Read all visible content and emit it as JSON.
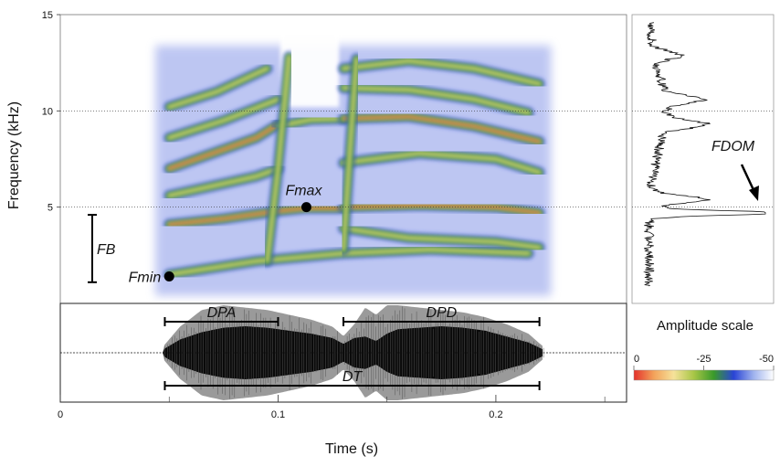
{
  "chart_data": [
    {
      "type": "heatmap",
      "panel": "spectrogram",
      "xlim": [
        0,
        0.26
      ],
      "ylim": [
        0,
        15
      ],
      "ylabel": "Frequency (kHz)",
      "yticks": [
        "5",
        "10",
        "15"
      ],
      "gridlines_y": [
        5,
        10
      ],
      "call_start_s": 0.047,
      "call_end_s": 0.222,
      "bands": [
        {
          "t": [
            0.05,
            0.075,
            0.1,
            0.113,
            0.13
          ],
          "f": [
            4.1,
            4.4,
            4.8,
            4.95,
            4.95
          ]
        },
        {
          "t": [
            0.05,
            0.07,
            0.09,
            0.1
          ],
          "f": [
            5.6,
            6.1,
            6.6,
            7.0
          ]
        },
        {
          "t": [
            0.05,
            0.07,
            0.09,
            0.1
          ],
          "f": [
            7.0,
            7.8,
            8.6,
            9.3
          ]
        },
        {
          "t": [
            0.05,
            0.075,
            0.1
          ],
          "f": [
            8.6,
            9.5,
            10.6
          ]
        },
        {
          "t": [
            0.05,
            0.072,
            0.095
          ],
          "f": [
            10.2,
            11.0,
            12.2
          ]
        },
        {
          "t": [
            0.1,
            0.115,
            0.13
          ],
          "f": [
            9.2,
            9.55,
            9.6
          ]
        },
        {
          "t": [
            0.13,
            0.165,
            0.2,
            0.22
          ],
          "f": [
            5.0,
            5.1,
            5.0,
            4.7
          ]
        },
        {
          "t": [
            0.13,
            0.16,
            0.19,
            0.22
          ],
          "f": [
            9.6,
            9.7,
            9.2,
            8.4
          ]
        },
        {
          "t": [
            0.13,
            0.165,
            0.2,
            0.22
          ],
          "f": [
            7.3,
            7.8,
            7.5,
            6.8
          ]
        },
        {
          "t": [
            0.13,
            0.16,
            0.19,
            0.215
          ],
          "f": [
            11.2,
            11.1,
            10.6,
            9.9
          ]
        },
        {
          "t": [
            0.13,
            0.16,
            0.19,
            0.22
          ],
          "f": [
            12.2,
            12.6,
            12.2,
            11.4
          ]
        },
        {
          "t": [
            0.05,
            0.09,
            0.13,
            0.17,
            0.215
          ],
          "f": [
            1.5,
            2.2,
            2.6,
            2.8,
            2.6
          ]
        },
        {
          "t": [
            0.13,
            0.16,
            0.2,
            0.22
          ],
          "f": [
            3.9,
            3.4,
            3.2,
            2.9
          ]
        },
        {
          "t": [
            0.095,
            0.1,
            0.105
          ],
          "f": [
            2.2,
            7.0,
            12.8
          ]
        },
        {
          "t": [
            0.13,
            0.133,
            0.136
          ],
          "f": [
            2.8,
            8.0,
            12.7
          ]
        }
      ]
    },
    {
      "type": "line",
      "panel": "power-spectrum",
      "ylim": [
        0,
        15
      ],
      "peak_khz": 4.7,
      "secondary_peaks_khz": [
        5.4,
        9.3,
        10.6,
        12.9
      ],
      "annotation": "FDOM"
    },
    {
      "type": "area",
      "panel": "oscillogram",
      "xlabel": "Time (s)",
      "xlim": [
        0,
        0.26
      ],
      "xticks": [
        "0",
        "0.1",
        "0.2"
      ],
      "xtick_values": [
        0,
        0.1,
        0.2
      ],
      "minor_tick_values": [
        0.05,
        0.15,
        0.25
      ],
      "envelope_t": [
        0.047,
        0.055,
        0.065,
        0.075,
        0.085,
        0.095,
        0.105,
        0.115,
        0.125,
        0.13,
        0.135,
        0.14,
        0.145,
        0.15,
        0.155,
        0.165,
        0.175,
        0.185,
        0.195,
        0.205,
        0.215,
        0.222
      ],
      "envelope_black": [
        0.1,
        0.45,
        0.7,
        0.85,
        0.9,
        0.85,
        0.75,
        0.65,
        0.5,
        0.3,
        0.5,
        0.55,
        0.4,
        0.65,
        0.8,
        0.85,
        0.9,
        0.85,
        0.75,
        0.55,
        0.35,
        0.1
      ],
      "envelope_grey": [
        0.12,
        0.55,
        0.9,
        1.0,
        0.95,
        0.9,
        0.8,
        0.7,
        0.55,
        0.35,
        0.6,
        0.95,
        0.8,
        1.0,
        1.0,
        0.95,
        0.9,
        0.85,
        0.75,
        0.6,
        0.4,
        0.12
      ]
    }
  ],
  "annotations": {
    "fmax": "Fmax",
    "fmin": "Fmin",
    "fb": "FB",
    "fdom": "FDOM",
    "dpa": "DPA",
    "dpd": "DPD",
    "dt": "DT",
    "fmax_point": {
      "t": 0.113,
      "f": 5.0
    },
    "fmin_point": {
      "t": 0.05,
      "f": 1.4
    },
    "fb_range_khz": [
      1.1,
      4.6
    ],
    "dpa_range_s": [
      0.048,
      0.1
    ],
    "dpd_range_s": [
      0.13,
      0.22
    ],
    "dt_range_s": [
      0.048,
      0.22
    ]
  },
  "amplitude_scale": {
    "title": "Amplitude scale",
    "ticks": [
      "0",
      "-25",
      "-50"
    ],
    "tick_values": [
      0,
      -25,
      -50
    ],
    "colors": [
      "#e4312b",
      "#f3a25a",
      "#f6e29a",
      "#a8c646",
      "#3a9a2a",
      "#2a44d6",
      "#9fb3ee",
      "#ffffff"
    ]
  }
}
